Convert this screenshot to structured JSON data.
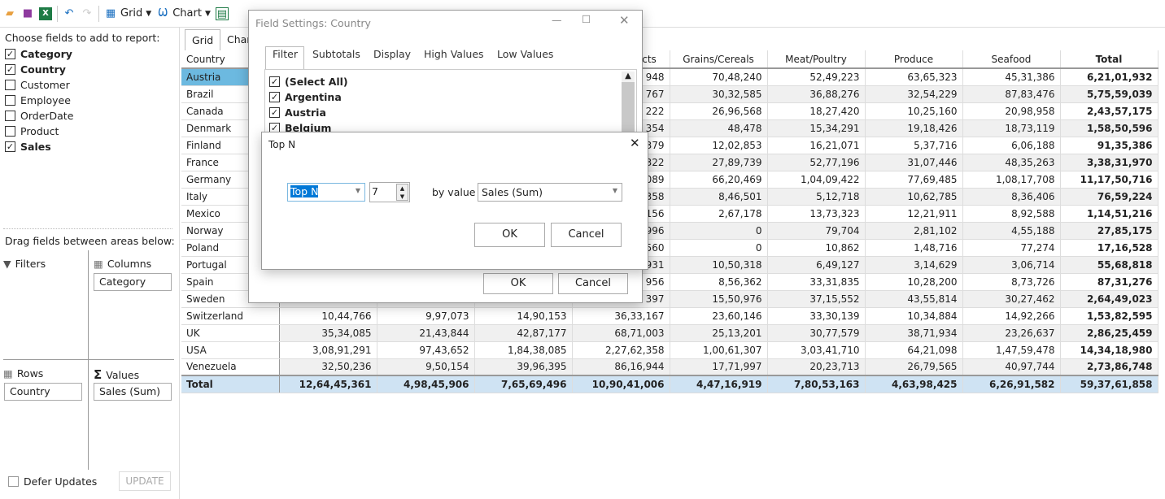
{
  "toolbar": {
    "grid_label": "Grid",
    "chart_label": "Chart"
  },
  "left": {
    "choose_label": "Choose fields to add to report:",
    "fields": [
      {
        "label": "Category",
        "checked": true
      },
      {
        "label": "Country",
        "checked": true
      },
      {
        "label": "Customer",
        "checked": false
      },
      {
        "label": "Employee",
        "checked": false
      },
      {
        "label": "OrderDate",
        "checked": false
      },
      {
        "label": "Product",
        "checked": false
      },
      {
        "label": "Sales",
        "checked": true
      }
    ],
    "drag_label": "Drag fields between areas below:",
    "filters_label": "Filters",
    "columns_label": "Columns",
    "rows_label": "Rows",
    "values_label": "Values",
    "columns_chip": "Category",
    "rows_chip": "Country",
    "values_chip": "Sales (Sum)",
    "defer_label": "Defer Updates",
    "update_label": "UPDATE"
  },
  "tabs": [
    "Grid",
    "Chart"
  ],
  "grid": {
    "headers": [
      "Country",
      "",
      "",
      "",
      "Dairy Products",
      "Grains/Cereals",
      "Meat/Poultry",
      "Produce",
      "Seafood",
      "Total"
    ],
    "rows": [
      [
        "Austria",
        "",
        "",
        "",
        "948",
        "70,48,240",
        "52,49,223",
        "63,65,323",
        "45,31,386",
        "6,21,01,932"
      ],
      [
        "Brazil",
        "",
        "",
        "",
        "767",
        "30,32,585",
        "36,88,276",
        "32,54,229",
        "87,83,476",
        "5,75,59,039"
      ],
      [
        "Canada",
        "",
        "",
        "",
        "222",
        "26,96,568",
        "18,27,420",
        "10,25,160",
        "20,98,958",
        "2,43,57,175"
      ],
      [
        "Denmark",
        "",
        "",
        "",
        "354",
        "48,478",
        "15,34,291",
        "19,18,426",
        "18,73,119",
        "1,58,50,596"
      ],
      [
        "Finland",
        "",
        "",
        "",
        "379",
        "12,02,853",
        "16,21,071",
        "5,37,716",
        "6,06,188",
        "91,35,386"
      ],
      [
        "France",
        "",
        "",
        "",
        "322",
        "27,89,739",
        "52,77,196",
        "31,07,446",
        "48,35,263",
        "3,38,31,970"
      ],
      [
        "Germany",
        "",
        "",
        "",
        "089",
        "66,20,469",
        "1,04,09,422",
        "77,69,485",
        "1,08,17,708",
        "11,17,50,716"
      ],
      [
        "Italy",
        "",
        "",
        "",
        "358",
        "8,46,501",
        "5,12,718",
        "10,62,785",
        "8,36,406",
        "76,59,224"
      ],
      [
        "Mexico",
        "",
        "",
        "",
        "156",
        "2,67,178",
        "13,73,323",
        "12,21,911",
        "8,92,588",
        "1,14,51,216"
      ],
      [
        "Norway",
        "",
        "",
        "",
        "996",
        "0",
        "79,704",
        "2,81,102",
        "4,55,188",
        "27,85,175"
      ],
      [
        "Poland",
        "",
        "",
        "",
        "560",
        "0",
        "10,862",
        "1,48,716",
        "77,274",
        "17,16,528"
      ],
      [
        "Portugal",
        "",
        "",
        "",
        "931",
        "10,50,318",
        "6,49,127",
        "3,14,629",
        "3,06,714",
        "55,68,818"
      ],
      [
        "Spain",
        "",
        "",
        "",
        "956",
        "8,56,362",
        "33,31,835",
        "10,28,200",
        "8,73,726",
        "87,31,276"
      ],
      [
        "Sweden",
        "",
        "",
        "",
        "397",
        "15,50,976",
        "37,15,552",
        "43,55,814",
        "30,27,462",
        "2,64,49,023"
      ],
      [
        "Switzerland",
        "10,44,766",
        "9,97,073",
        "14,90,153",
        "36,33,167",
        "23,60,146",
        "33,30,139",
        "10,34,884",
        "14,92,266",
        "1,53,82,595"
      ],
      [
        "UK",
        "35,34,085",
        "21,43,844",
        "42,87,177",
        "68,71,003",
        "25,13,201",
        "30,77,579",
        "38,71,934",
        "23,26,637",
        "2,86,25,459"
      ],
      [
        "USA",
        "3,08,91,291",
        "97,43,652",
        "1,84,38,085",
        "2,27,62,358",
        "1,00,61,307",
        "3,03,41,710",
        "64,21,098",
        "1,47,59,478",
        "14,34,18,980"
      ],
      [
        "Venezuela",
        "32,50,236",
        "9,50,154",
        "39,96,395",
        "86,16,944",
        "17,71,997",
        "20,23,713",
        "26,79,565",
        "40,97,744",
        "2,73,86,748"
      ]
    ],
    "total": [
      "Total",
      "12,64,45,361",
      "4,98,45,906",
      "7,65,69,496",
      "10,90,41,006",
      "4,47,16,919",
      "7,80,53,163",
      "4,63,98,425",
      "6,26,91,582",
      "59,37,61,858"
    ]
  },
  "field_settings": {
    "title": "Field Settings: Country",
    "tabs": [
      "Filter",
      "Subtotals",
      "Display",
      "High Values",
      "Low Values"
    ],
    "items": [
      "(Select All)",
      "Argentina",
      "Austria",
      "Belgium"
    ],
    "ok": "OK",
    "cancel": "Cancel"
  },
  "topn": {
    "title": "Top N",
    "mode": "Top N",
    "count": "7",
    "by_label": "by value",
    "by_value": "Sales (Sum)",
    "ok": "OK",
    "cancel": "Cancel"
  },
  "colors": {
    "selection": "#6cb9e0",
    "total_row": "#cfe3f3",
    "highlight": "#0078d7"
  }
}
